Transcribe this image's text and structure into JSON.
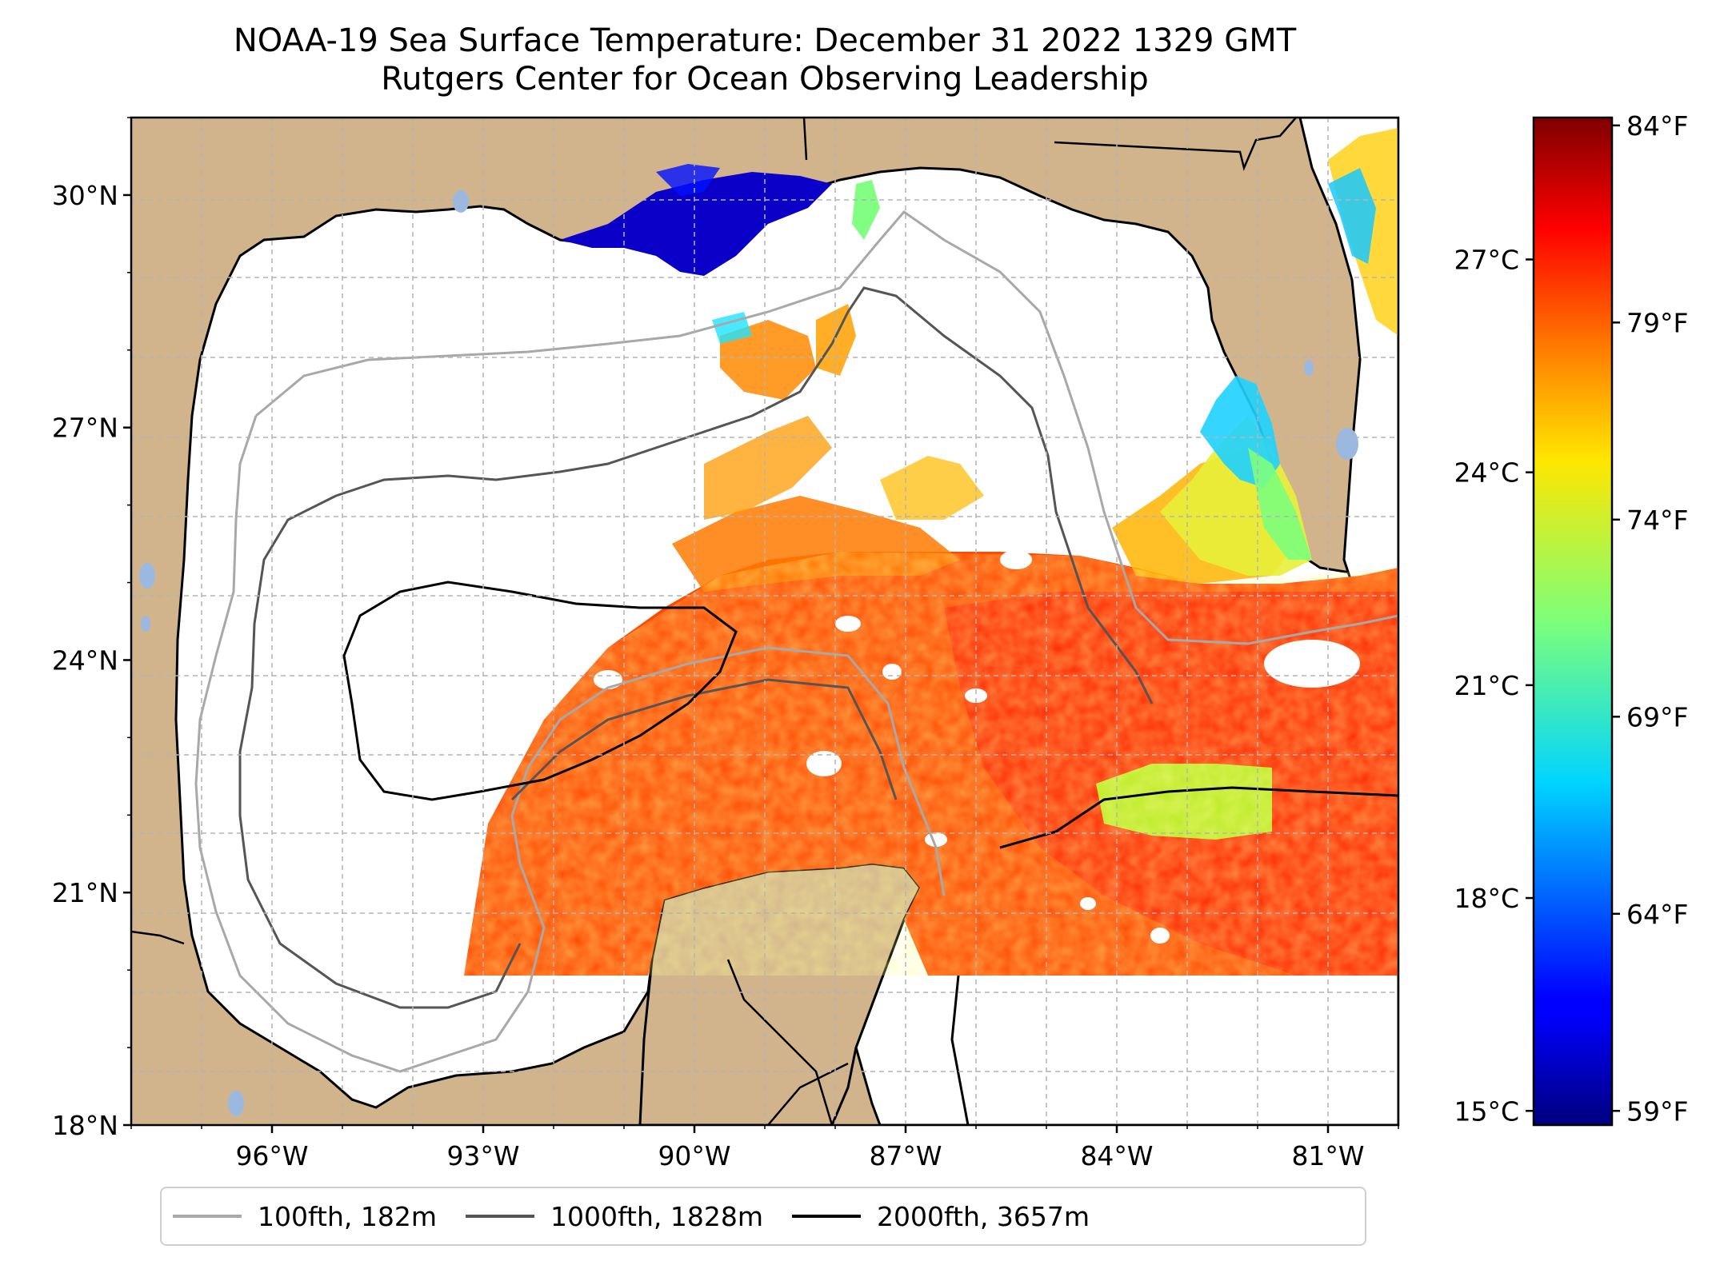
{
  "title": {
    "line1": "NOAA-19 Sea Surface Temperature: December 31 2022 1329 GMT",
    "line2": "Rutgers Center for Ocean Observing Leadership"
  },
  "map": {
    "lon_range": [
      -98,
      -80
    ],
    "lat_range": [
      18,
      31
    ],
    "lat_ticks": [
      {
        "value": 30,
        "label": "30°N"
      },
      {
        "value": 27,
        "label": "27°N"
      },
      {
        "value": 24,
        "label": "24°N"
      },
      {
        "value": 21,
        "label": "21°N"
      },
      {
        "value": 18,
        "label": "18°N"
      }
    ],
    "lon_ticks": [
      {
        "value": -96,
        "label": "96°W"
      },
      {
        "value": -93,
        "label": "93°W"
      },
      {
        "value": -90,
        "label": "90°W"
      },
      {
        "value": -87,
        "label": "87°W"
      },
      {
        "value": -84,
        "label": "84°W"
      },
      {
        "value": -81,
        "label": "81°W"
      }
    ],
    "gridlines": "dashed",
    "land_color": "#d2b48c",
    "no_data_color": "#ffffff",
    "lake_color": "#9ab8e0"
  },
  "colorbar": {
    "colormap": "jet",
    "celsius_ticks": [
      {
        "value": 27,
        "label": "27°C"
      },
      {
        "value": 24,
        "label": "24°C"
      },
      {
        "value": 21,
        "label": "21°C"
      },
      {
        "value": 18,
        "label": "18°C"
      },
      {
        "value": 15,
        "label": "15°C"
      }
    ],
    "fahrenheit_ticks": [
      {
        "value": 84,
        "label": "84°F"
      },
      {
        "value": 79,
        "label": "79°F"
      },
      {
        "value": 74,
        "label": "74°F"
      },
      {
        "value": 69,
        "label": "69°F"
      },
      {
        "value": 64,
        "label": "64°F"
      },
      {
        "value": 59,
        "label": "59°F"
      }
    ]
  },
  "legend": [
    {
      "label": "100fth, 182m",
      "color": "#a8a8a8"
    },
    {
      "label": "1000fth, 1828m",
      "color": "#555555"
    },
    {
      "label": "2000fth, 3657m",
      "color": "#000000"
    }
  ]
}
